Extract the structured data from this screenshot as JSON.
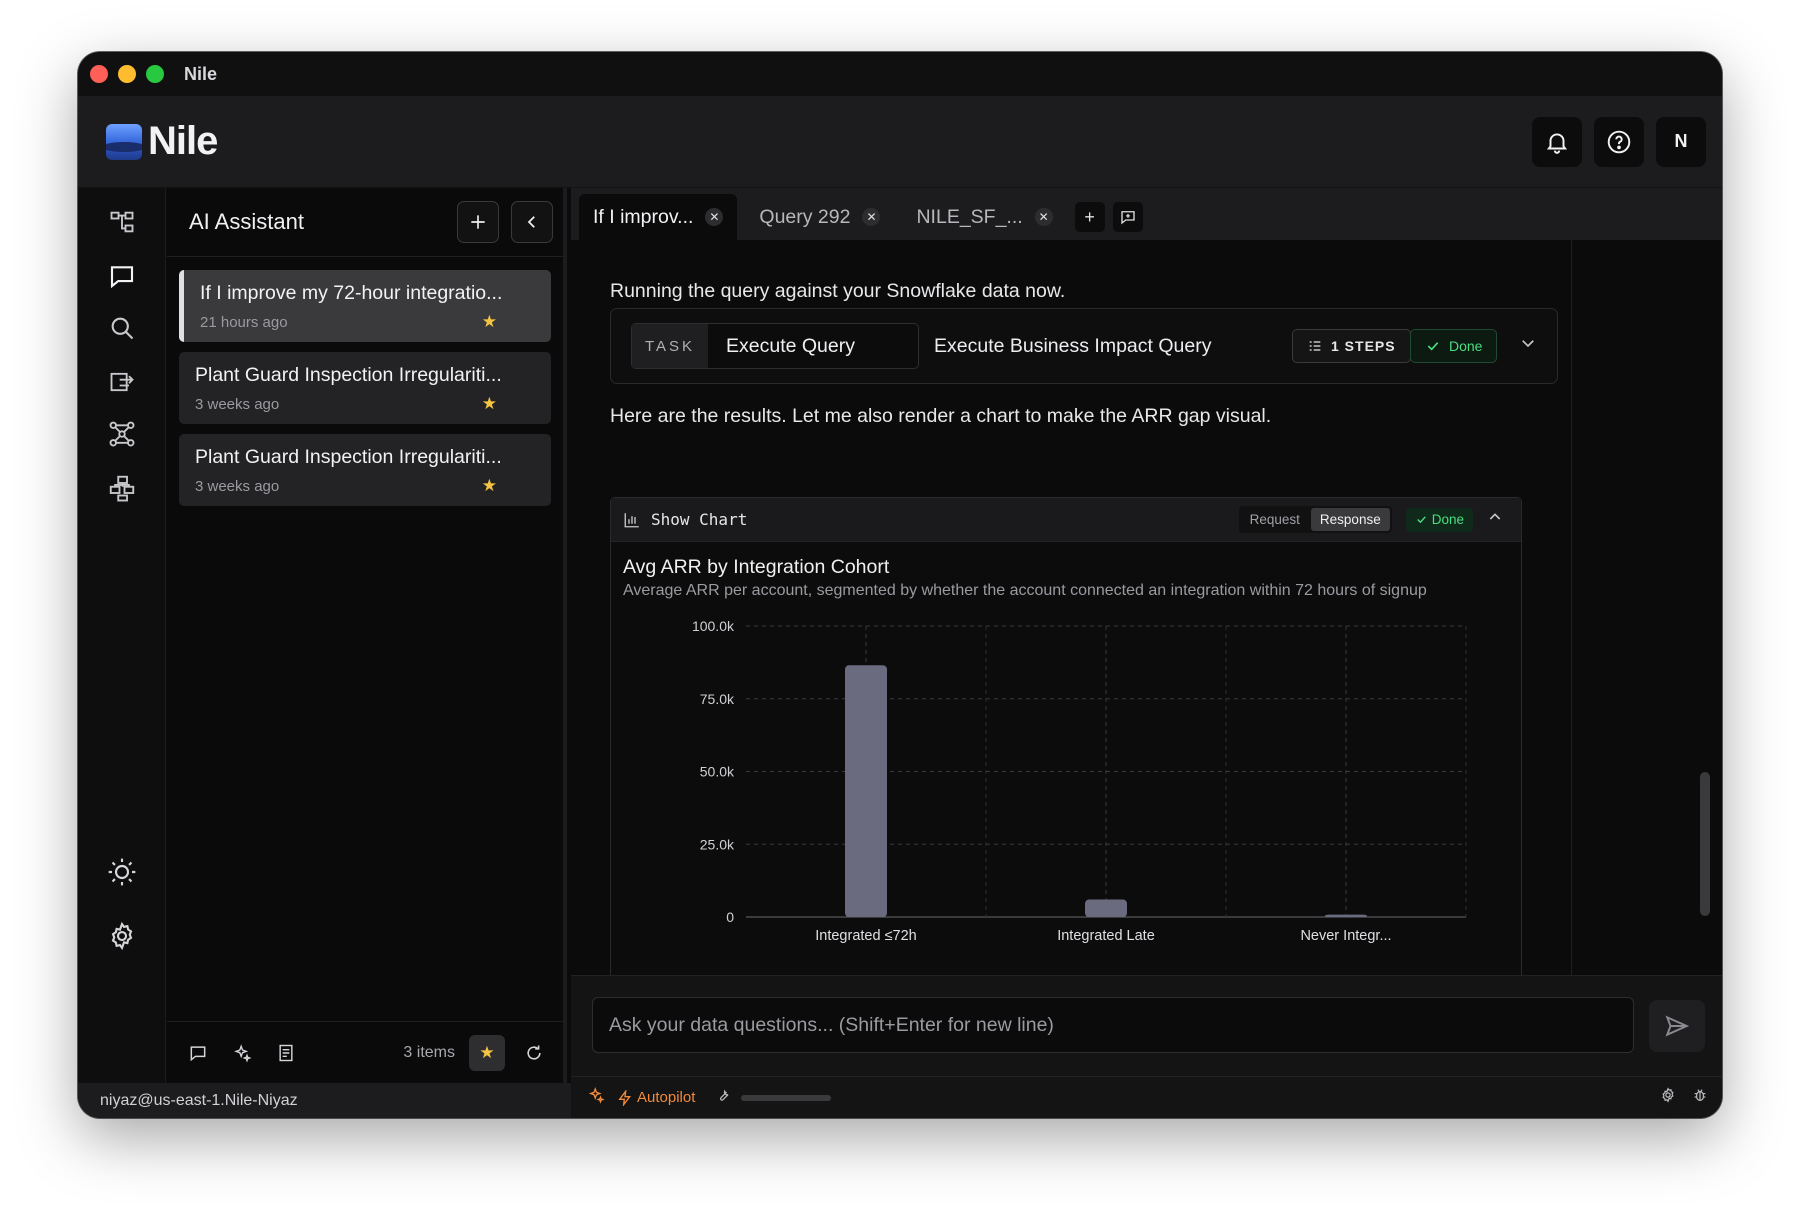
{
  "window": {
    "title": "Nile"
  },
  "header": {
    "brand": "Nile",
    "avatar_initial": "N"
  },
  "panel": {
    "title": "AI Assistant",
    "conversations": [
      {
        "title": "If I improve my 72-hour integratio...",
        "time": "21 hours ago",
        "starred": true,
        "active": true
      },
      {
        "title": "Plant Guard Inspection Irregulariti...",
        "time": "3 weeks ago",
        "starred": true,
        "active": false
      },
      {
        "title": "Plant Guard Inspection Irregulariti...",
        "time": "3 weeks ago",
        "starred": true,
        "active": false
      }
    ],
    "footer": {
      "items_count": "3 items"
    }
  },
  "status": {
    "connection": "niyaz@us-east-1.Nile-Niyaz",
    "autopilot": "Autopilot"
  },
  "tabs": [
    {
      "label": "If I improv...",
      "active": true
    },
    {
      "label": "Query 292",
      "active": false
    },
    {
      "label": "NILE_SF_...",
      "active": false
    }
  ],
  "chat": {
    "msg1": "Running the query against your Snowflake data now.",
    "task": {
      "label": "TASK",
      "name": "Execute Query",
      "description": "Execute Business Impact Query",
      "steps": "1 STEPS",
      "status": "Done"
    },
    "msg2": "Here are the results. Let me also render a chart to make the ARR gap visual.",
    "chart_card": {
      "title": "Show Chart",
      "seg_request": "Request",
      "seg_response": "Response",
      "status": "Done"
    }
  },
  "chart_data": {
    "type": "bar",
    "title": "Avg ARR by Integration Cohort",
    "subtitle": "Average ARR per account, segmented by whether the account connected an integration within 72 hours of signup",
    "categories": [
      "Integrated ≤72h",
      "Integrated Late",
      "Never Integr..."
    ],
    "values": [
      86500,
      6000,
      800
    ],
    "ylim": [
      0,
      100000
    ],
    "yticks": [
      0,
      25000,
      50000,
      75000,
      100000
    ],
    "ytick_labels": [
      "0",
      "25.0k",
      "50.0k",
      "75.0k",
      "100.0k"
    ],
    "grid": true,
    "bar_color": "#6b6b80"
  },
  "input": {
    "placeholder": "Ask your data questions... (Shift+Enter for new line)"
  },
  "colors": {
    "accent_done": "#4ade80",
    "star": "#f5c542",
    "autopilot": "#f08a3c"
  }
}
